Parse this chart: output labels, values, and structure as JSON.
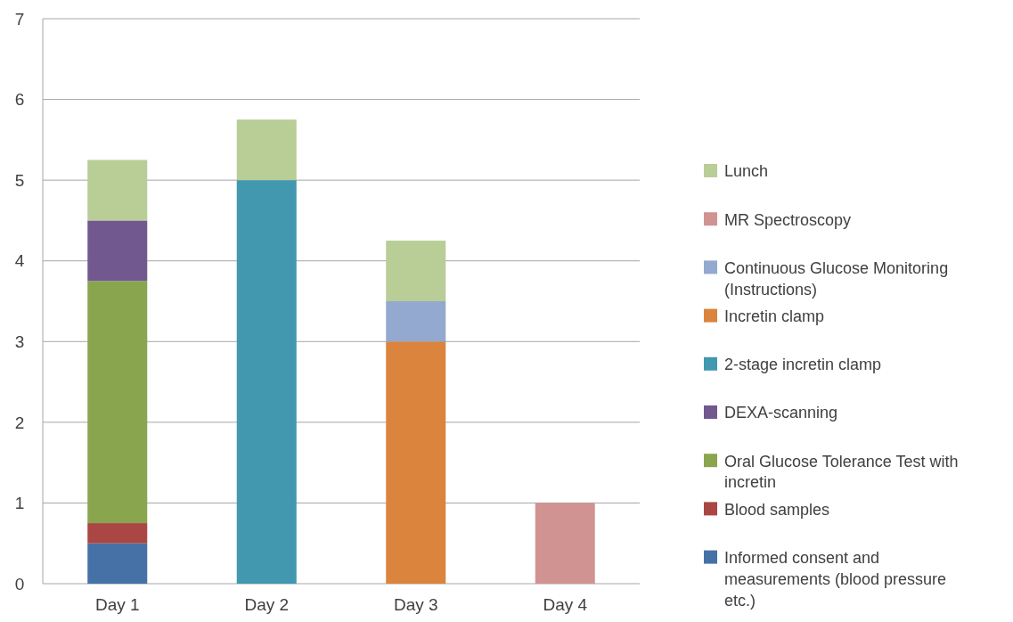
{
  "chart_data": {
    "type": "bar",
    "stacked": true,
    "categories": [
      "Day 1",
      "Day 2",
      "Day 3",
      "Day 4"
    ],
    "series": [
      {
        "name": "Informed consent and measurements (blood pressure etc.)",
        "color": "#4571a7",
        "values": [
          0.5,
          null,
          null,
          null
        ]
      },
      {
        "name": "Blood samples",
        "color": "#aa4643",
        "values": [
          0.25,
          null,
          null,
          null
        ]
      },
      {
        "name": "Oral Glucose Tolerance Test with incretin",
        "color": "#89a54e",
        "values": [
          3,
          null,
          null,
          null
        ]
      },
      {
        "name": "DEXA-scanning",
        "color": "#71588f",
        "values": [
          0.75,
          null,
          null,
          null
        ]
      },
      {
        "name": "2-stage incretin clamp",
        "color": "#4198af",
        "values": [
          null,
          5,
          null,
          null
        ]
      },
      {
        "name": "Incretin clamp",
        "color": "#db843d",
        "values": [
          null,
          null,
          3,
          null
        ]
      },
      {
        "name": "Continuous Glucose Monitoring (Instructions)",
        "color": "#93a9cf",
        "values": [
          null,
          null,
          0.5,
          null
        ]
      },
      {
        "name": "MR Spectroscopy",
        "color": "#d19392",
        "values": [
          null,
          null,
          null,
          1
        ]
      },
      {
        "name": "Lunch",
        "color": "#b9cd96",
        "values": [
          0.75,
          0.75,
          0.75,
          null
        ]
      }
    ],
    "ylim": [
      0,
      7
    ],
    "yticks": [
      0,
      1,
      2,
      3,
      4,
      5,
      6,
      7
    ],
    "grid": "y",
    "legend": "right"
  }
}
